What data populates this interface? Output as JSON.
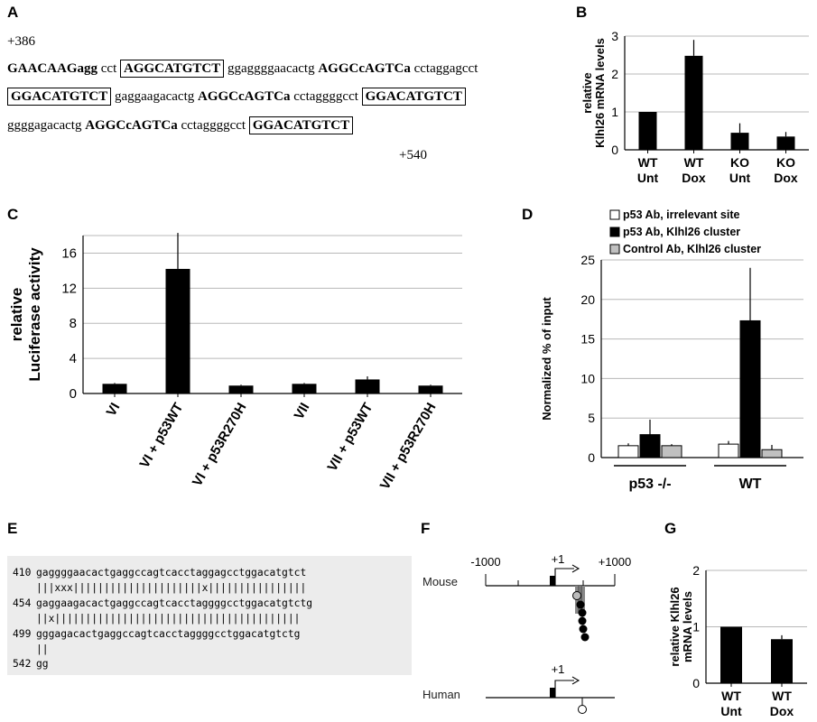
{
  "panels": {
    "A": "A",
    "B": "B",
    "C": "C",
    "D": "D",
    "E": "E",
    "F": "F",
    "G": "G"
  },
  "panel_a": {
    "start": "+386",
    "end": "+540",
    "line1": [
      {
        "t": "GAACAAGagg",
        "s": "b"
      },
      {
        "t": " cct ",
        "s": "n"
      },
      {
        "t": "AGGCATGTCT",
        "s": "box"
      },
      {
        "t": " ggaggggaacactg ",
        "s": "n"
      },
      {
        "t": "AGGCcAGTCa",
        "s": "b"
      },
      {
        "t": " cctaggagcct",
        "s": "n"
      }
    ],
    "line2": [
      {
        "t": "GGACATGTCT",
        "s": "box"
      },
      {
        "t": " gaggaagacactg ",
        "s": "n"
      },
      {
        "t": "AGGCcAGTCa",
        "s": "b"
      },
      {
        "t": " cctaggggcct ",
        "s": "n"
      },
      {
        "t": "GGACATGTCT",
        "s": "box"
      }
    ],
    "line3": [
      {
        "t": "ggggagacactg ",
        "s": "n"
      },
      {
        "t": "AGGCcAGTCa",
        "s": "b"
      },
      {
        "t": " cctaggggcct ",
        "s": "n"
      },
      {
        "t": "GGACATGTCT",
        "s": "box"
      }
    ]
  },
  "chart_data": [
    {
      "panel": "B",
      "type": "bar",
      "categories": [
        [
          "WT",
          "Unt"
        ],
        [
          "WT",
          "Dox"
        ],
        [
          "KO",
          "Unt"
        ],
        [
          "KO",
          "Dox"
        ]
      ],
      "values": [
        1.0,
        2.48,
        0.45,
        0.35
      ],
      "errors": [
        0,
        0.42,
        0.25,
        0.12
      ],
      "ylabel": [
        "relative",
        "Klhl26 mRNA levels"
      ],
      "ylim": [
        0,
        3
      ],
      "yticks": [
        "0",
        "1",
        "2",
        "3"
      ],
      "grid": true,
      "color": "#000000"
    },
    {
      "panel": "C",
      "type": "bar",
      "categories": [
        "VI",
        "VI + p53WT",
        "VI + p53R270H",
        "VII",
        "VII + p53WT",
        "VII + p53R270H"
      ],
      "values": [
        1.1,
        14.2,
        0.9,
        1.1,
        1.6,
        0.9
      ],
      "errors": [
        0.1,
        4.1,
        0.1,
        0.1,
        0.35,
        0.1
      ],
      "ylabel": [
        "relative",
        "Luciferase activity"
      ],
      "ylim": [
        0,
        18
      ],
      "yticks": [
        "0",
        "4",
        "8",
        "12",
        "16"
      ],
      "grid": true,
      "color": "#000000"
    },
    {
      "panel": "D",
      "type": "bar",
      "groups": [
        "p53 -/-",
        "WT"
      ],
      "series": [
        {
          "name": "p53 Ab, irrelevant site",
          "values": [
            1.5,
            1.7
          ],
          "errors": [
            0.3,
            0.4
          ],
          "color": "#ffffff"
        },
        {
          "name": "p53 Ab, Klhl26  cluster",
          "values": [
            2.9,
            17.3
          ],
          "errors": [
            1.9,
            6.7
          ],
          "color": "#000000"
        },
        {
          "name": "Control Ab, Klhl26  cluster",
          "values": [
            1.5,
            1.0
          ],
          "errors": [
            0.2,
            0.6
          ],
          "color": "#c0c0c0"
        }
      ],
      "ylabel": "Normalized % of input",
      "ylim": [
        0,
        25
      ],
      "yticks": [
        "0",
        "5",
        "10",
        "15",
        "20",
        "25"
      ],
      "grid": true,
      "legend": "top"
    },
    {
      "panel": "G",
      "type": "bar",
      "categories": [
        [
          "WT",
          "Unt"
        ],
        [
          "WT",
          "Dox"
        ]
      ],
      "values": [
        1.0,
        0.78
      ],
      "errors": [
        0,
        0.07
      ],
      "ylabel": [
        "relative  Klhl26",
        "mRNA levels"
      ],
      "ylim": [
        0,
        2
      ],
      "yticks": [
        "0",
        "1",
        "2"
      ],
      "grid": true,
      "color": "#000000"
    }
  ],
  "panel_e": {
    "rows": [
      {
        "num": "410",
        "seq": "gaggggaacactgaggccagtcacctaggagcctggacatgtct"
      },
      {
        "num": "454",
        "seq": "gaggaagacactgaggccagtcacctaggggcctggacatgtctg"
      },
      {
        "num": "499",
        "seq": "gggagacactgaggccagtcacctaggggcctggacatgtctg"
      },
      {
        "num": "542",
        "seq": "gg"
      }
    ],
    "matches": [
      "|||xxx|||||||||||||||||||||x||||||||||||||||",
      "||x||||||||||||||||||||||||||||||||||||||||",
      "||"
    ]
  },
  "panel_f": {
    "left": "-1000",
    "right": "+1000",
    "tss_mouse": "+1",
    "tss_human": "+1",
    "mouse": "Mouse",
    "human": "Human"
  }
}
